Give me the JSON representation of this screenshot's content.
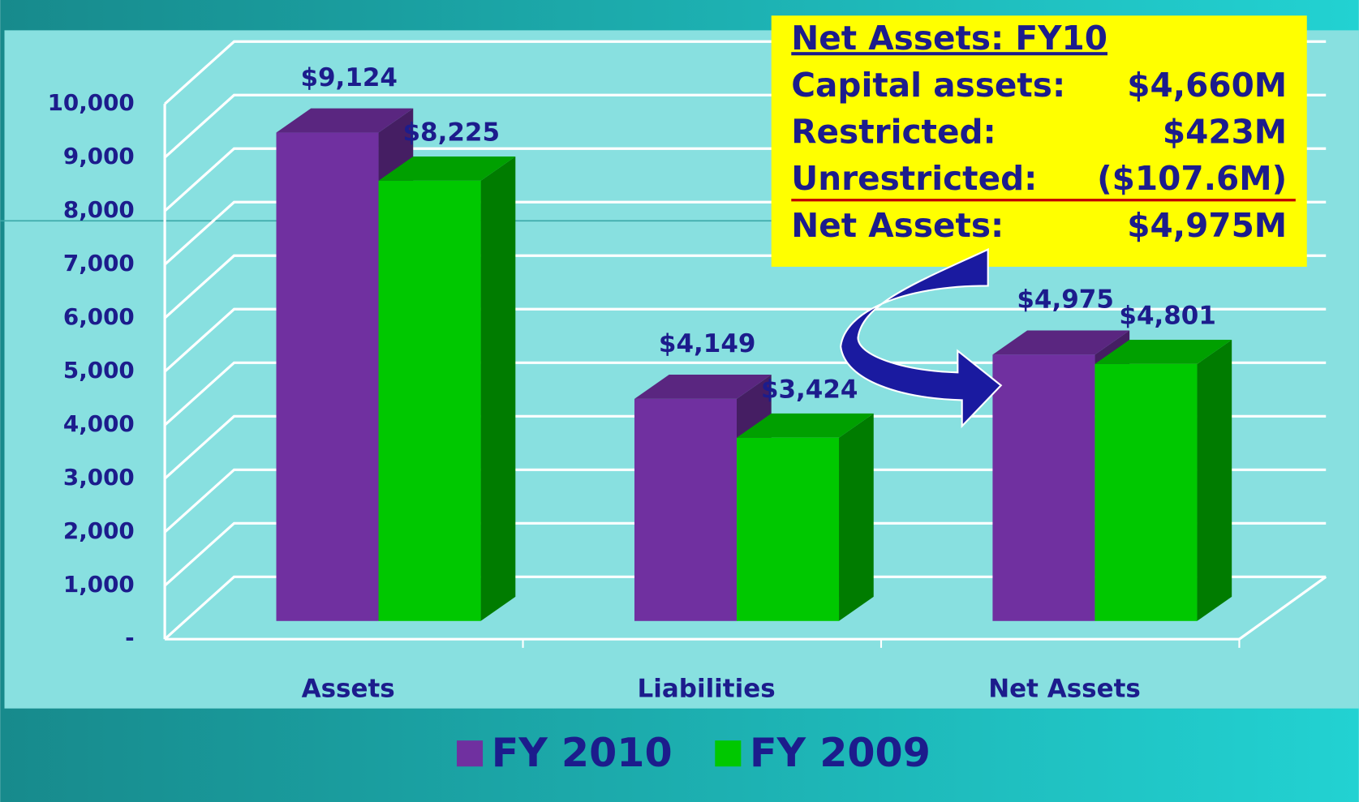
{
  "chart_data": {
    "type": "bar3d",
    "categories": [
      "Assets",
      "Liabilities",
      "Net Assets"
    ],
    "series": [
      {
        "name": "FY 2010",
        "color": "#7030a0",
        "values": [
          9124,
          4149,
          4975
        ],
        "value_labels": [
          "$9,124",
          "$4,149",
          "$4,975"
        ]
      },
      {
        "name": "FY 2009",
        "color": "#00c800",
        "values": [
          8225,
          3424,
          4801
        ],
        "value_labels": [
          "$8,225",
          "$3,424",
          "$4,801"
        ]
      }
    ],
    "ylim": [
      0,
      10000
    ],
    "yticks": [
      {
        "value": 0,
        "label": "-"
      },
      {
        "value": 1000,
        "label": "1,000"
      },
      {
        "value": 2000,
        "label": "2,000"
      },
      {
        "value": 3000,
        "label": "3,000"
      },
      {
        "value": 4000,
        "label": "4,000"
      },
      {
        "value": 5000,
        "label": "5,000"
      },
      {
        "value": 6000,
        "label": "6,000"
      },
      {
        "value": 7000,
        "label": "7,000"
      },
      {
        "value": 8000,
        "label": "8,000"
      },
      {
        "value": 9000,
        "label": "9,000"
      },
      {
        "value": 10000,
        "label": "10,000"
      }
    ],
    "grid": true,
    "legend": "bottom",
    "annotation": {
      "title": "Net Assets: FY10",
      "rows": [
        {
          "label": "Capital assets:",
          "value": "$4,660M"
        },
        {
          "label": "Restricted:",
          "value": "$423M"
        },
        {
          "label": "Unrestricted:",
          "value": "($107.6M)"
        },
        {
          "label": "Net Assets:",
          "value": "$4,975M"
        }
      ]
    }
  }
}
